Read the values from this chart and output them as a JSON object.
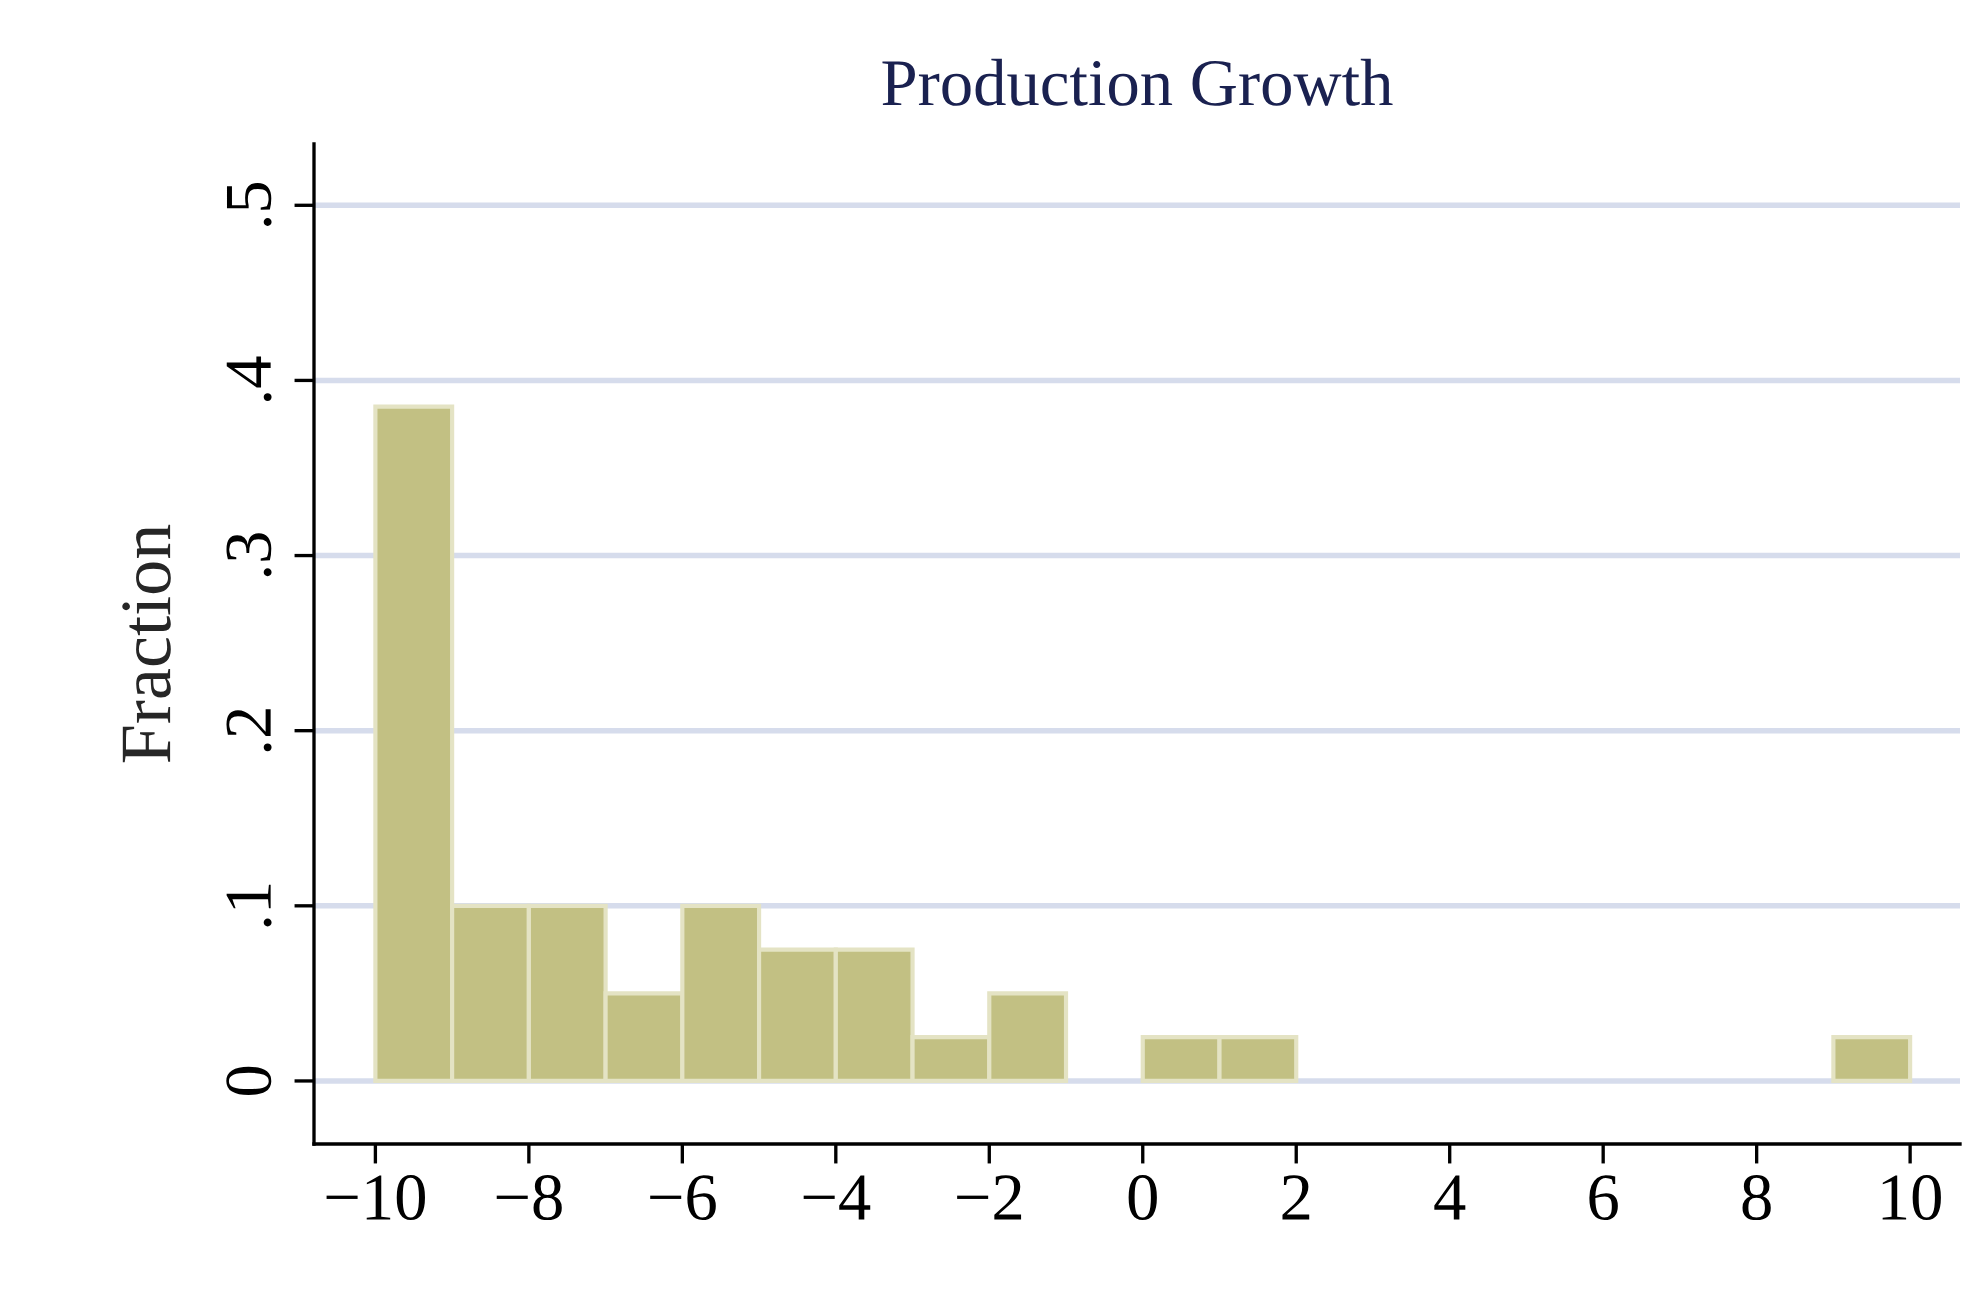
{
  "chart_data": {
    "type": "histogram",
    "title": "Production Growth",
    "ylabel": "Fraction",
    "bins": [
      -10,
      -9,
      -8,
      -7,
      -6,
      -5,
      -4,
      -3,
      -2,
      -1,
      0,
      1,
      2,
      3,
      4,
      5,
      6,
      7,
      8,
      9,
      10
    ],
    "values": [
      0.385,
      0.1,
      0.1,
      0.05,
      0.1,
      0.075,
      0.075,
      0.025,
      0.05,
      0,
      0.025,
      0.025,
      0,
      0,
      0,
      0,
      0,
      0,
      0,
      0.025
    ],
    "color": "#c2c083",
    "xlim": [
      -10.8,
      10.65
    ],
    "ylim": [
      -0.036,
      0.535
    ],
    "xticks": [
      {
        "value": -10,
        "label": "−10"
      },
      {
        "value": -8,
        "label": "−8"
      },
      {
        "value": -6,
        "label": "−6"
      },
      {
        "value": -4,
        "label": "−4"
      },
      {
        "value": -2,
        "label": "−2"
      },
      0,
      2,
      4,
      6,
      8,
      10
    ],
    "yticks": [
      0,
      {
        "value": 0.1,
        "label": ".1"
      },
      {
        "value": 0.2,
        "label": ".2"
      },
      {
        "value": 0.3,
        "label": ".3"
      },
      {
        "value": 0.4,
        "label": ".4"
      },
      {
        "value": 0.5,
        "label": ".5"
      }
    ],
    "grid": "y"
  }
}
